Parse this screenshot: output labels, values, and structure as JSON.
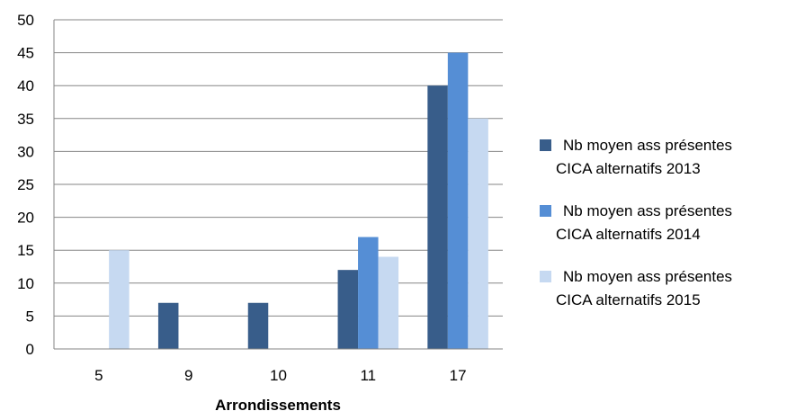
{
  "chart_data": {
    "type": "bar",
    "title": "",
    "xlabel": "Arrondissements",
    "ylabel": "",
    "categories": [
      "5",
      "9",
      "10",
      "11",
      "17"
    ],
    "ylim": [
      0,
      50
    ],
    "yticks": [
      "0",
      "5",
      "10",
      "15",
      "20",
      "25",
      "30",
      "35",
      "40",
      "45",
      "50"
    ],
    "grid": true,
    "legend_position": "right",
    "series": [
      {
        "name": "Nb moyen ass présentes CICA alternatifs 2013",
        "legend_lines": [
          "Nb moyen ass présentes",
          "CICA alternatifs 2013"
        ],
        "color": "#385d8a",
        "values": [
          0,
          7,
          7,
          12,
          40
        ]
      },
      {
        "name": "Nb moyen ass présentes CICA alternatifs 2014",
        "legend_lines": [
          "Nb moyen ass présentes",
          "CICA alternatifs 2014"
        ],
        "color": "#558ed5",
        "values": [
          0,
          0,
          0,
          17,
          45
        ]
      },
      {
        "name": "Nb moyen ass présentes CICA alternatifs 2015",
        "legend_lines": [
          "Nb moyen ass présentes",
          "CICA alternatifs 2015"
        ],
        "color": "#c6d9f1",
        "values": [
          15,
          0,
          0,
          14,
          35
        ]
      }
    ]
  }
}
